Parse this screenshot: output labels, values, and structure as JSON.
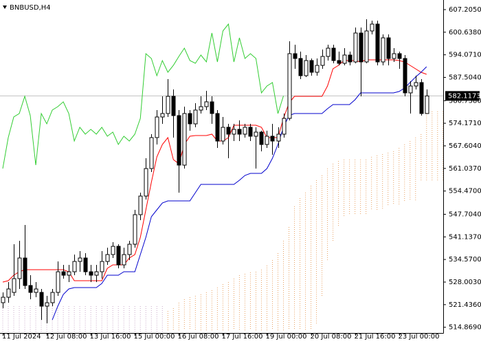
{
  "chart_data": {
    "type": "candlestick",
    "title": "BNBUSD,H4",
    "categories": [
      "11 Jul 2024",
      null,
      null,
      null,
      null,
      null,
      null,
      null,
      "12 Jul 08:00",
      null,
      null,
      null,
      null,
      null,
      null,
      null,
      "13 Jul 16:00",
      null,
      null,
      null,
      null,
      null,
      null,
      null,
      "15 Jul 00:00",
      null,
      null,
      null,
      null,
      null,
      null,
      null,
      "16 Jul 08:00",
      null,
      null,
      null,
      null,
      null,
      null,
      null,
      "17 Jul 16:00",
      null,
      null,
      null,
      null,
      null,
      null,
      null,
      "19 Jul 00:00",
      null,
      null,
      null,
      null,
      null,
      null,
      null,
      "20 Jul 08:00",
      null,
      null,
      null,
      null,
      null,
      null,
      null,
      "21 Jul 16:00",
      null,
      null,
      null,
      null,
      null,
      null,
      null,
      "23 Jul 00:00",
      null,
      null,
      null,
      null,
      null,
      null,
      null,
      null
    ],
    "open": [
      522.0,
      523.6,
      525.0,
      529.0,
      535.0,
      527.0,
      525.0,
      525.0,
      521.0,
      522.0,
      525.0,
      531.0,
      530.0,
      531.0,
      534.0,
      535.0,
      531.0,
      530.0,
      531.0,
      534.0,
      536.0,
      538.4,
      533.0,
      536.0,
      539.0,
      547.6,
      553.0,
      561.0,
      570.0,
      576.0,
      577.0,
      582.0,
      576.4,
      562.0,
      577.0,
      574.0,
      578.0,
      579.0,
      580.4,
      577.0,
      569.0,
      573.0,
      571.0,
      572.4,
      571.0,
      573.0,
      570.4,
      571.6,
      568.0,
      570.4,
      569.0,
      571.0,
      575.6,
      594.4,
      593.0,
      588.0,
      592.4,
      589.0,
      591.0,
      593.6,
      596.0,
      592.4,
      591.6,
      594.0,
      592.0,
      600.4,
      592.0,
      601.0,
      603.0,
      592.0,
      599.0,
      593.0,
      594.4,
      593.0,
      583.0,
      585.0,
      586.0,
      577.0,
      null,
      null,
      null
    ],
    "high": [
      525.0,
      528.0,
      539.0,
      540.0,
      544.6,
      530.0,
      528.0,
      526.0,
      524.0,
      526.0,
      534.0,
      533.0,
      533.0,
      536.0,
      537.0,
      536.4,
      533.0,
      533.0,
      537.0,
      538.0,
      539.6,
      539.0,
      538.0,
      540.0,
      549.0,
      554.0,
      564.0,
      571.0,
      578.0,
      582.0,
      587.0,
      584.0,
      578.0,
      579.0,
      578.0,
      580.0,
      582.0,
      583.6,
      582.0,
      578.0,
      576.0,
      574.0,
      574.0,
      575.0,
      574.0,
      574.0,
      573.0,
      572.0,
      572.0,
      574.0,
      573.0,
      577.0,
      598.0,
      597.0,
      595.0,
      594.0,
      593.0,
      593.0,
      595.6,
      597.0,
      597.0,
      595.0,
      596.0,
      595.0,
      602.0,
      602.0,
      604.4,
      604.0,
      604.0,
      600.0,
      600.0,
      596.0,
      595.0,
      594.0,
      586.4,
      588.0,
      587.0,
      584.0,
      null,
      null,
      null
    ],
    "low": [
      520.4,
      522.0,
      524.0,
      526.0,
      526.0,
      523.0,
      523.6,
      517.0,
      516.0,
      521.0,
      524.0,
      529.0,
      528.0,
      530.0,
      531.0,
      530.0,
      528.0,
      528.0,
      529.0,
      533.0,
      535.0,
      532.0,
      532.0,
      534.4,
      538.0,
      546.0,
      552.0,
      560.0,
      568.0,
      574.0,
      576.0,
      570.0,
      554.0,
      561.0,
      572.0,
      573.0,
      577.0,
      578.0,
      574.0,
      567.0,
      568.0,
      564.0,
      569.0,
      569.0,
      570.0,
      569.0,
      561.0,
      566.0,
      567.0,
      565.0,
      567.0,
      570.0,
      575.0,
      590.0,
      587.0,
      587.6,
      588.0,
      588.0,
      590.0,
      592.4,
      591.6,
      591.0,
      591.0,
      591.0,
      591.6,
      582.0,
      591.6,
      600.0,
      591.0,
      591.0,
      591.0,
      592.0,
      590.0,
      582.0,
      577.0,
      584.0,
      576.4,
      577.0,
      null,
      null,
      null
    ],
    "close": [
      523.6,
      526.0,
      529.0,
      535.0,
      527.0,
      525.0,
      526.0,
      521.0,
      522.0,
      525.0,
      531.0,
      530.0,
      531.0,
      534.0,
      535.0,
      531.0,
      530.0,
      531.0,
      534.0,
      536.0,
      538.4,
      533.0,
      536.0,
      539.0,
      547.6,
      553.0,
      561.0,
      570.0,
      576.0,
      577.0,
      582.0,
      576.4,
      562.0,
      577.0,
      574.0,
      578.0,
      579.0,
      580.4,
      577.0,
      569.0,
      573.0,
      571.0,
      572.4,
      571.0,
      573.0,
      570.4,
      571.6,
      568.0,
      570.4,
      569.0,
      571.0,
      575.6,
      594.4,
      593.0,
      588.0,
      592.4,
      589.0,
      591.0,
      593.6,
      596.0,
      592.4,
      591.6,
      594.0,
      592.0,
      600.4,
      592.0,
      601.0,
      603.0,
      592.0,
      599.0,
      593.0,
      594.4,
      593.0,
      583.0,
      585.0,
      586.0,
      577.0,
      582.1173,
      null,
      null,
      null
    ],
    "tenkan": [
      528.0,
      528.4,
      530.0,
      531.0,
      531.6,
      531.6,
      531.6,
      531.6,
      531.6,
      531.6,
      531.6,
      531.6,
      531.0,
      528.4,
      528.4,
      528.4,
      528.4,
      528.4,
      528.4,
      532.0,
      533.0,
      533.0,
      533.0,
      535.0,
      536.0,
      541.0,
      549.0,
      557.0,
      564.4,
      568.0,
      570.0,
      563.6,
      562.4,
      568.0,
      570.4,
      570.6,
      570.6,
      570.6,
      571.0,
      569.0,
      569.0,
      570.0,
      573.6,
      573.6,
      573.6,
      573.6,
      573.6,
      573.0,
      570.0,
      570.0,
      570.0,
      575.6,
      580.0,
      582.0,
      582.0,
      582.0,
      582.0,
      582.0,
      582.0,
      585.0,
      590.0,
      591.0,
      592.4,
      592.4,
      592.4,
      592.0,
      592.6,
      592.6,
      592.6,
      592.6,
      592.6,
      592.6,
      592.4,
      592.0,
      591.0,
      590.0,
      589.0,
      588.4,
      null,
      null,
      null
    ],
    "kijun": [
      null,
      null,
      null,
      null,
      null,
      null,
      null,
      null,
      null,
      517.0,
      521.0,
      524.4,
      526.0,
      526.4,
      526.4,
      526.4,
      526.4,
      526.4,
      527.6,
      530.0,
      530.0,
      530.0,
      531.0,
      531.0,
      531.0,
      536.0,
      541.0,
      547.0,
      549.0,
      551.0,
      551.6,
      551.6,
      551.6,
      551.6,
      551.6,
      554.0,
      556.4,
      556.4,
      556.4,
      556.4,
      556.4,
      556.4,
      556.4,
      557.6,
      559.0,
      559.6,
      559.6,
      559.6,
      561.0,
      564.0,
      568.0,
      573.0,
      576.4,
      577.0,
      577.0,
      577.0,
      577.0,
      577.0,
      577.0,
      578.4,
      579.6,
      579.6,
      579.6,
      579.6,
      581.0,
      583.0,
      583.0,
      583.0,
      583.0,
      583.0,
      583.0,
      583.0,
      583.4,
      584.4,
      586.0,
      587.6,
      589.0,
      590.6,
      null,
      null,
      null
    ],
    "chikou": [
      561.0,
      570.0,
      576.0,
      577.0,
      582.0,
      576.4,
      562.0,
      577.0,
      574.0,
      578.0,
      579.0,
      580.4,
      577.0,
      569.0,
      573.0,
      571.0,
      572.4,
      571.0,
      573.0,
      570.4,
      571.6,
      568.0,
      570.4,
      569.0,
      571.0,
      575.6,
      594.4,
      593.0,
      588.0,
      592.4,
      589.0,
      591.0,
      593.6,
      596.0,
      592.4,
      591.6,
      594.0,
      592.0,
      600.4,
      592.0,
      601.0,
      603.0,
      592.0,
      599.0,
      593.0,
      594.4,
      593.0,
      583.0,
      585.0,
      586.0,
      577.0,
      582.1173,
      null,
      null,
      null,
      null,
      null,
      null,
      null,
      null,
      null,
      null,
      null,
      null,
      null,
      null,
      null,
      null,
      null,
      null,
      null,
      null,
      null,
      null,
      null,
      null,
      null,
      null,
      null,
      null,
      null
    ],
    "span_a": [
      513.6,
      513.6,
      513.6,
      513.6,
      513.6,
      513.6,
      513.6,
      513.6,
      513.6,
      513.6,
      513.6,
      513.6,
      513.6,
      513.6,
      513.6,
      513.6,
      513.6,
      513.6,
      513.6,
      513.6,
      513.6,
      513.6,
      513.6,
      513.6,
      513.6,
      513.6,
      513.6,
      513.6,
      513.6,
      513.6,
      519.6,
      520.4,
      522.0,
      523.0,
      523.6,
      524.0,
      524.4,
      525.0,
      525.6,
      526.4,
      527.4,
      528.0,
      529.0,
      530.0,
      530.4,
      530.8,
      531.0,
      531.6,
      532.8,
      534.4,
      536.4,
      540.0,
      544.0,
      550.0,
      552.4,
      554.0,
      556.0,
      557.6,
      559.0,
      561.0,
      562.4,
      563.2,
      563.6,
      563.6,
      563.6,
      563.6,
      563.6,
      564.4,
      564.8,
      565.2,
      565.6,
      566.0,
      567.0,
      568.0,
      569.0,
      570.0,
      571.0,
      577.0,
      577.6,
      577.6,
      577.6
    ],
    "span_b": [
      521.0,
      521.0,
      521.0,
      521.0,
      521.0,
      521.0,
      521.0,
      521.0,
      521.0,
      521.0,
      521.0,
      521.0,
      521.0,
      521.0,
      521.0,
      521.0,
      521.0,
      521.0,
      521.0,
      521.0,
      521.0,
      521.0,
      521.0,
      521.0,
      521.0,
      521.0,
      521.0,
      521.0,
      521.0,
      521.0,
      514.0,
      514.0,
      514.0,
      514.0,
      514.0,
      514.0,
      514.0,
      514.0,
      514.0,
      514.0,
      514.0,
      514.0,
      514.0,
      514.0,
      514.0,
      514.0,
      514.0,
      514.0,
      514.0,
      514.0,
      514.0,
      514.0,
      514.0,
      514.0,
      514.0,
      514.0,
      514.0,
      516.0,
      524.0,
      534.0,
      540.0,
      544.0,
      547.0,
      547.6,
      547.6,
      547.6,
      547.6,
      549.0,
      549.0,
      549.0,
      550.4,
      550.4,
      550.4,
      551.6,
      551.6,
      551.6,
      557.6,
      557.6,
      557.6,
      557.6,
      557.6
    ],
    "colors": {
      "tenkan": "#ff0000",
      "kijun": "#0000cd",
      "chikou": "#32cd32",
      "cloud_up": "#e8a060",
      "cloud_down": "#c8a8c8",
      "up_body": "#ffffff",
      "down_body": "#000000",
      "current": "#c0c0c0"
    },
    "current_price": 582.1173,
    "ylim": [
      513.2,
      610.0
    ],
    "yticks": [
      {
        "value": 607.205,
        "label": "607.2050"
      },
      {
        "value": 600.638,
        "label": "600.6380"
      },
      {
        "value": 594.071,
        "label": "594.0710"
      },
      {
        "value": 587.504,
        "label": "587.5040"
      },
      {
        "value": 580.738,
        "label": "580.7380"
      },
      {
        "value": 574.171,
        "label": "574.1710"
      },
      {
        "value": 567.604,
        "label": "567.6040"
      },
      {
        "value": 561.037,
        "label": "561.0370"
      },
      {
        "value": 554.47,
        "label": "554.4700"
      },
      {
        "value": 547.704,
        "label": "547.7040"
      },
      {
        "value": 541.137,
        "label": "541.1370"
      },
      {
        "value": 534.57,
        "label": "534.5700"
      },
      {
        "value": 528.003,
        "label": "528.0030"
      },
      {
        "value": 521.436,
        "label": "521.4360"
      },
      {
        "value": 514.869,
        "label": "514.8690"
      }
    ],
    "grid": false
  }
}
